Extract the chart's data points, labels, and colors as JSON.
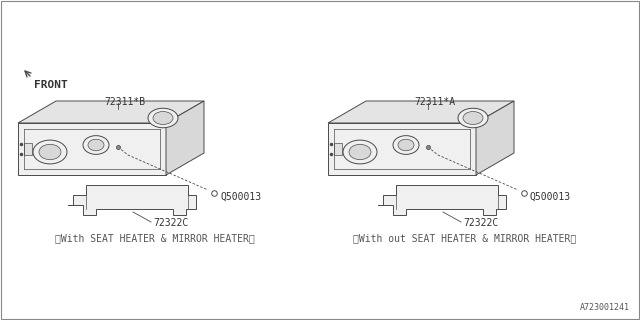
{
  "bg_color": "#ffffff",
  "line_color": "#4a4a4a",
  "title_bottom_left": "〈With SEAT HEATER & MIRROR HEATER〉",
  "title_bottom_right": "〈With out SEAT HEATER & MIRROR HEATER〉",
  "part_label_left_top": "72311*B",
  "part_label_right_top": "72311*A",
  "part_label_screw": "Q500013",
  "part_label_trim": "72322C",
  "front_label": "FRONT",
  "diagram_id": "A723001241",
  "font_size_labels": 7,
  "font_size_caption": 7,
  "font_size_id": 6,
  "panel_fill": "#f0f0f0",
  "panel_shadow": "#d8d8d8",
  "panel_top": "#e4e4e4"
}
